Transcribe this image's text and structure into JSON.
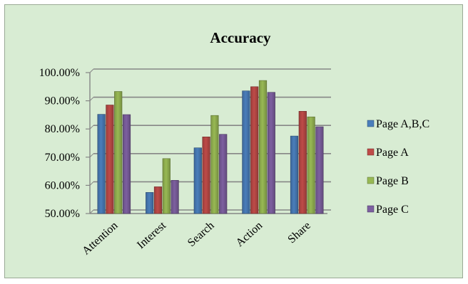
{
  "chart_data": {
    "type": "bar",
    "title": "Accuracy",
    "xlabel": "",
    "ylabel": "",
    "categories": [
      "Attention",
      "Interest",
      "Search",
      "Action",
      "Share"
    ],
    "series": [
      {
        "name": "Page A,B,C",
        "color": "#4a7ebb",
        "values": [
          85.2,
          57.5,
          73.3,
          93.5,
          77.5
        ]
      },
      {
        "name": "Page A",
        "color": "#be4b48",
        "values": [
          88.5,
          59.5,
          77.2,
          95.0,
          86.3
        ]
      },
      {
        "name": "Page B",
        "color": "#98b954",
        "values": [
          93.3,
          69.5,
          84.8,
          97.2,
          84.3
        ]
      },
      {
        "name": "Page C",
        "color": "#7d60a0",
        "values": [
          85.1,
          61.8,
          78.1,
          93.0,
          80.8
        ]
      }
    ],
    "ylim": [
      50,
      100
    ],
    "yticks": [
      "50.00%",
      "60.00%",
      "70.00%",
      "80.00%",
      "90.00%",
      "100.00%"
    ],
    "grid": true,
    "legend_position": "right"
  }
}
